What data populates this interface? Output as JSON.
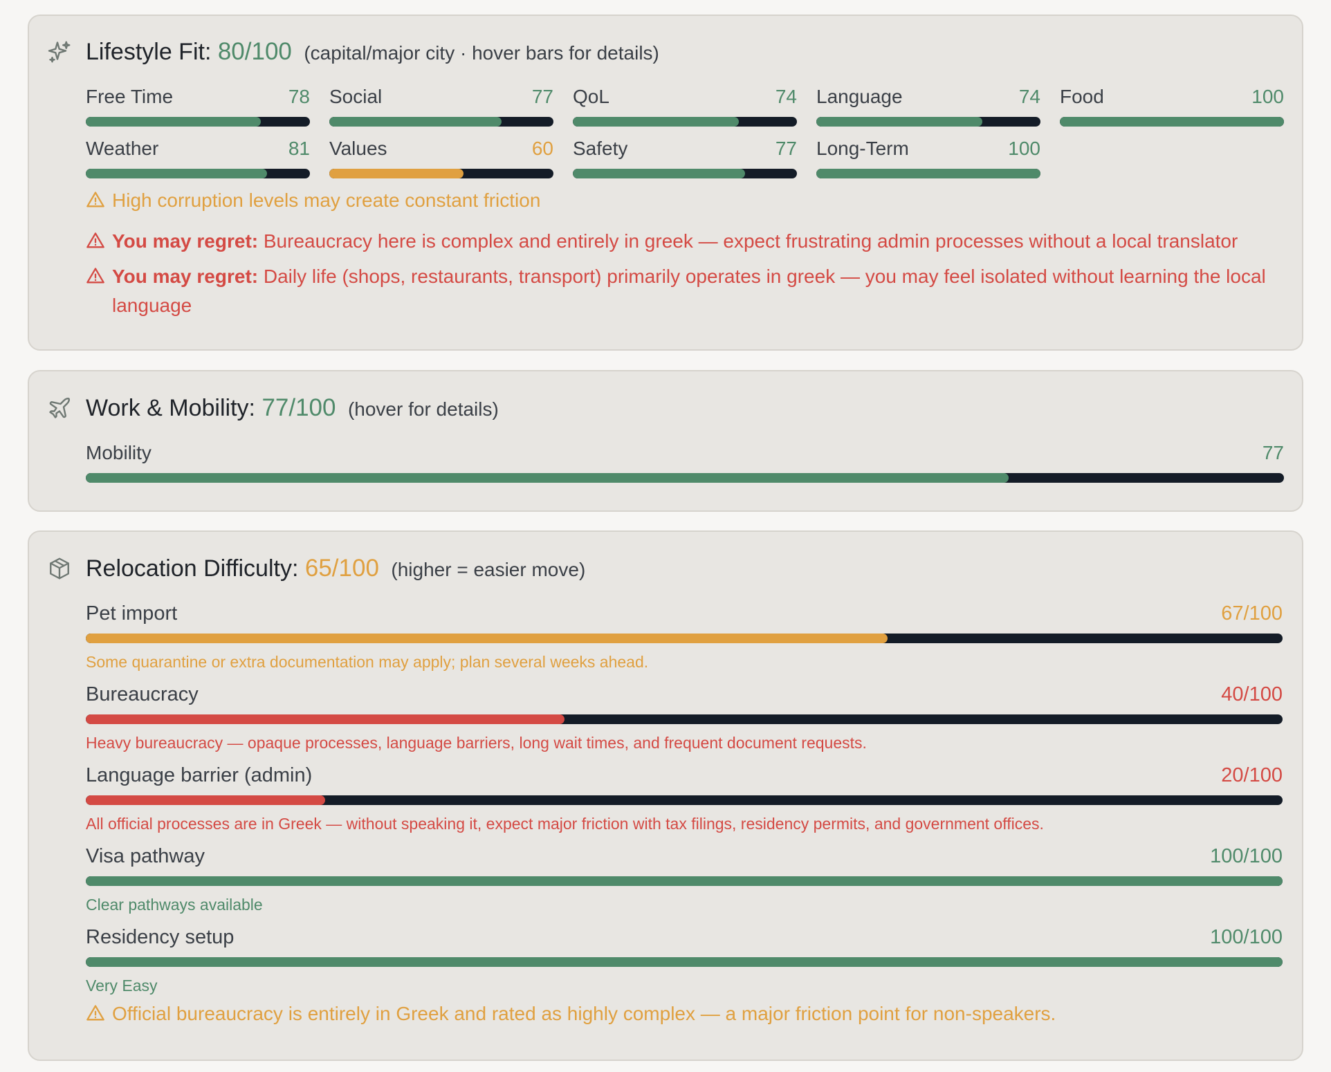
{
  "colors": {
    "good": "#4f8a6a",
    "medium": "#e0a040",
    "bad": "#d44a44",
    "track": "#141c27",
    "card_background": "#e8e6e2"
  },
  "lifestyle": {
    "icon": "sparkles-icon",
    "title": "Lifestyle Fit:",
    "score": "80/100",
    "note": "(capital/major city · hover bars for details)",
    "metrics": [
      {
        "label": "Free Time",
        "value": "78",
        "percent": 78,
        "status": "good"
      },
      {
        "label": "Social",
        "value": "77",
        "percent": 77,
        "status": "good"
      },
      {
        "label": "QoL",
        "value": "74",
        "percent": 74,
        "status": "good"
      },
      {
        "label": "Language",
        "value": "74",
        "percent": 74,
        "status": "good"
      },
      {
        "label": "Food",
        "value": "100",
        "percent": 100,
        "status": "good"
      },
      {
        "label": "Weather",
        "value": "81",
        "percent": 81,
        "status": "good"
      },
      {
        "label": "Values",
        "value": "60",
        "percent": 60,
        "status": "medium"
      },
      {
        "label": "Safety",
        "value": "77",
        "percent": 77,
        "status": "good"
      },
      {
        "label": "Long-Term",
        "value": "100",
        "percent": 100,
        "status": "good"
      }
    ],
    "warning": "High corruption levels may create constant friction",
    "regrets": [
      {
        "prefix": "You may regret:",
        "text": "Bureaucracy here is complex and entirely in greek — expect frustrating admin processes without a local translator"
      },
      {
        "prefix": "You may regret:",
        "text": "Daily life (shops, restaurants, transport) primarily operates in greek — you may feel isolated without learning the local language"
      }
    ]
  },
  "work": {
    "icon": "plane-icon",
    "title": "Work & Mobility:",
    "score": "77/100",
    "note": "(hover for details)",
    "metrics": [
      {
        "label": "Mobility",
        "value": "77",
        "percent": 77,
        "status": "good"
      }
    ]
  },
  "relocation": {
    "icon": "package-icon",
    "title": "Relocation Difficulty:",
    "score": "65/100",
    "note": "(higher = easier move)",
    "items": [
      {
        "label": "Pet import",
        "value": "67/100",
        "percent": 67,
        "status": "medium",
        "description": "Some quarantine or extra documentation may apply; plan several weeks ahead."
      },
      {
        "label": "Bureaucracy",
        "value": "40/100",
        "percent": 40,
        "status": "bad",
        "description": "Heavy bureaucracy — opaque processes, language barriers, long wait times, and frequent document requests."
      },
      {
        "label": "Language barrier (admin)",
        "value": "20/100",
        "percent": 20,
        "status": "bad",
        "description": "All official processes are in Greek — without speaking it, expect major friction with tax filings, residency permits, and government offices."
      },
      {
        "label": "Visa pathway",
        "value": "100/100",
        "percent": 100,
        "status": "good",
        "description": "Clear pathways available"
      },
      {
        "label": "Residency setup",
        "value": "100/100",
        "percent": 100,
        "status": "good",
        "description": "Very Easy"
      }
    ],
    "warning": "Official bureaucracy is entirely in Greek and rated as highly complex — a major friction point for non-speakers."
  }
}
